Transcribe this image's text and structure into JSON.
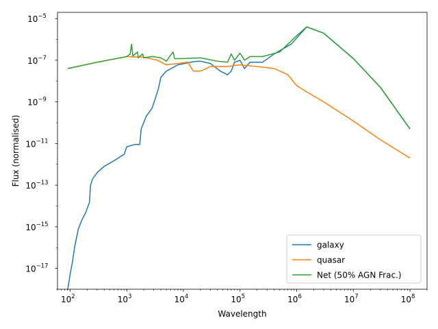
{
  "chart_data": {
    "type": "line",
    "title": "",
    "xlabel": "Wavelength",
    "ylabel": "Flux (normalised)",
    "xscale": "log",
    "yscale": "log",
    "xlim": [
      60,
      200000000
    ],
    "ylim": [
      1e-18,
      2e-05
    ],
    "x_ticks": [
      {
        "value": 100,
        "base": "10",
        "exp": "2"
      },
      {
        "value": 1000,
        "base": "10",
        "exp": "3"
      },
      {
        "value": 10000,
        "base": "10",
        "exp": "4"
      },
      {
        "value": 100000,
        "base": "10",
        "exp": "5"
      },
      {
        "value": 1000000,
        "base": "10",
        "exp": "6"
      },
      {
        "value": 10000000,
        "base": "10",
        "exp": "7"
      },
      {
        "value": 100000000,
        "base": "10",
        "exp": "8"
      }
    ],
    "y_ticks": [
      {
        "value": 1e-17,
        "base": "10",
        "exp": "−17"
      },
      {
        "value": 1e-15,
        "base": "10",
        "exp": "−15"
      },
      {
        "value": 1e-13,
        "base": "10",
        "exp": "−13"
      },
      {
        "value": 1e-11,
        "base": "10",
        "exp": "−11"
      },
      {
        "value": 1e-09,
        "base": "10",
        "exp": "−9"
      },
      {
        "value": 1e-07,
        "base": "10",
        "exp": "−7"
      },
      {
        "value": 1e-05,
        "base": "10",
        "exp": "−5"
      }
    ],
    "legend_position": "lower-right",
    "grid": false,
    "series": [
      {
        "name": "galaxy",
        "color": "#1f77b4",
        "points": [
          [
            91,
            1e-18
          ],
          [
            100,
            5e-18
          ],
          [
            110,
            2e-17
          ],
          [
            120,
            1e-16
          ],
          [
            130,
            3e-16
          ],
          [
            140,
            8e-16
          ],
          [
            160,
            2e-15
          ],
          [
            190,
            5e-15
          ],
          [
            220,
            1.5e-14
          ],
          [
            230,
            1e-13
          ],
          [
            250,
            2e-13
          ],
          [
            300,
            4e-13
          ],
          [
            400,
            8e-13
          ],
          [
            600,
            1.5e-12
          ],
          [
            800,
            2.5e-12
          ],
          [
            900,
            3e-12
          ],
          [
            1000,
            7e-12
          ],
          [
            1400,
            9e-12
          ],
          [
            1700,
            9e-12
          ],
          [
            1800,
            5e-11
          ],
          [
            2200,
            2e-10
          ],
          [
            2800,
            5e-10
          ],
          [
            3200,
            1.5e-09
          ],
          [
            3600,
            4e-09
          ],
          [
            4000,
            1.5e-08
          ],
          [
            5000,
            3e-08
          ],
          [
            8000,
            6e-08
          ],
          [
            15000,
            8.5e-08
          ],
          [
            20000,
            9e-08
          ],
          [
            30000,
            7e-08
          ],
          [
            45000,
            3e-08
          ],
          [
            60000,
            2e-08
          ],
          [
            70000,
            3e-08
          ],
          [
            80000,
            8e-08
          ],
          [
            100000,
            1e-07
          ],
          [
            120000,
            4e-08
          ],
          [
            150000,
            8e-08
          ],
          [
            250000,
            8e-08
          ],
          [
            400000,
            2e-07
          ],
          [
            800000,
            6e-07
          ],
          [
            1500000,
            4e-06
          ],
          [
            3000000,
            2e-06
          ],
          [
            10000000,
            1.2e-07
          ],
          [
            30000000,
            5e-09
          ],
          [
            100000000,
            5e-11
          ]
        ]
      },
      {
        "name": "quasar",
        "color": "#ff7f0e",
        "points": [
          [
            91,
            4e-08
          ],
          [
            300,
            8e-08
          ],
          [
            1000,
            1.5e-07
          ],
          [
            2000,
            1.4e-07
          ],
          [
            3500,
            1e-07
          ],
          [
            5000,
            6e-08
          ],
          [
            8000,
            7e-08
          ],
          [
            12000,
            8e-08
          ],
          [
            15000,
            3e-08
          ],
          [
            20000,
            3e-08
          ],
          [
            30000,
            5e-08
          ],
          [
            60000,
            5e-08
          ],
          [
            100000,
            6e-08
          ],
          [
            200000,
            5e-08
          ],
          [
            400000,
            4e-08
          ],
          [
            700000,
            2e-08
          ],
          [
            1000000,
            6e-09
          ],
          [
            1500000,
            3e-09
          ],
          [
            3000000,
            1e-09
          ],
          [
            10000000,
            1.2e-10
          ],
          [
            30000000,
            1.5e-11
          ],
          [
            100000000,
            2e-12
          ]
        ]
      },
      {
        "name": "Net (50% AGN Frac.)",
        "color": "#2ca02c",
        "points": [
          [
            91,
            4e-08
          ],
          [
            300,
            8e-08
          ],
          [
            1000,
            1.5e-07
          ],
          [
            1150,
            2e-07
          ],
          [
            1216,
            6e-07
          ],
          [
            1280,
            1.6e-07
          ],
          [
            1550,
            2.5e-07
          ],
          [
            1600,
            1.3e-07
          ],
          [
            1900,
            2e-07
          ],
          [
            2000,
            1.3e-07
          ],
          [
            2800,
            1.5e-07
          ],
          [
            4000,
            1.3e-07
          ],
          [
            5000,
            9e-08
          ],
          [
            6563,
            2.5e-07
          ],
          [
            7000,
            1.2e-07
          ],
          [
            10000,
            1.2e-07
          ],
          [
            20000,
            1.3e-07
          ],
          [
            40000,
            9e-08
          ],
          [
            60000,
            8e-08
          ],
          [
            70000,
            2e-07
          ],
          [
            80000,
            1e-07
          ],
          [
            100000,
            2.2e-07
          ],
          [
            120000,
            1e-07
          ],
          [
            150000,
            1.5e-07
          ],
          [
            250000,
            1.5e-07
          ],
          [
            500000,
            2.5e-07
          ],
          [
            1000000,
            1.5e-06
          ],
          [
            1500000,
            4e-06
          ],
          [
            3000000,
            2e-06
          ],
          [
            10000000,
            1.2e-07
          ],
          [
            30000000,
            5e-09
          ],
          [
            100000000,
            5e-11
          ]
        ]
      }
    ]
  }
}
